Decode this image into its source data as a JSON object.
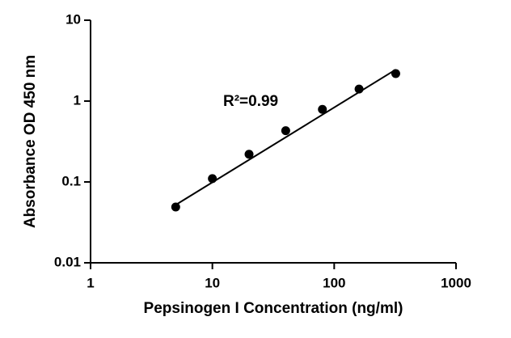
{
  "chart_data": {
    "type": "scatter",
    "xlabel": "Pepsinogen I Concentration (ng/ml)",
    "ylabel": "Absorbance OD 450 nm",
    "annotation": "R²=0.99",
    "xscale": "log",
    "yscale": "log",
    "xlim": [
      1,
      1000
    ],
    "ylim": [
      0.01,
      10
    ],
    "xticks": [
      1,
      10,
      100,
      1000
    ],
    "yticks": [
      0.01,
      0.1,
      1,
      10
    ],
    "grid": false,
    "series": [
      {
        "color": "#000000",
        "marker": "circle",
        "x": [
          5,
          10,
          20,
          40,
          80,
          160,
          320
        ],
        "values": [
          0.049,
          0.11,
          0.22,
          0.43,
          0.79,
          1.41,
          2.19
        ]
      },
      {
        "color": "#000000",
        "marker": "line",
        "x": [
          5,
          320
        ],
        "values": [
          0.052,
          2.45
        ]
      }
    ]
  }
}
